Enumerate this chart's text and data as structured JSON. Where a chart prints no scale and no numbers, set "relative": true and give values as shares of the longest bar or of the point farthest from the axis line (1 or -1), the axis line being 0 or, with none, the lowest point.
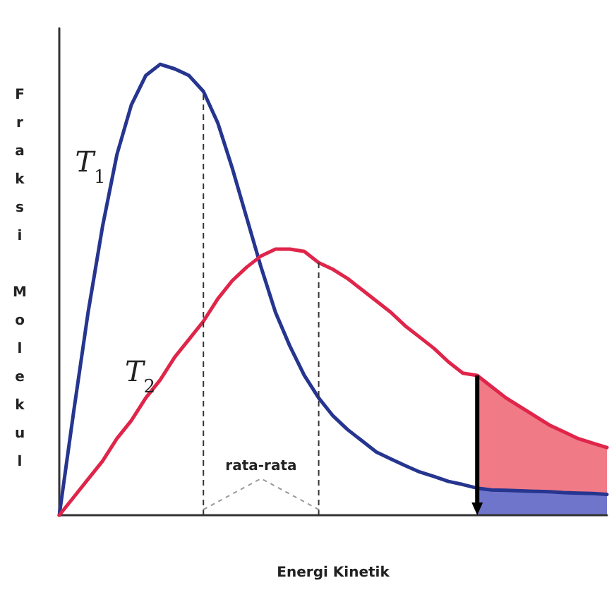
{
  "chart_data": {
    "type": "line",
    "relative": true,
    "xlabel": "Energi Kinetik",
    "ylabel": "Fraksi Molekul",
    "grid": false,
    "legend": false,
    "marker": "none",
    "line_style": "solid",
    "categories": [
      null,
      null,
      null,
      null,
      null,
      null,
      null,
      null,
      null,
      null,
      null,
      null,
      null,
      null,
      null,
      null,
      null,
      null,
      null,
      null,
      null,
      null,
      null,
      null,
      null,
      null,
      null,
      null,
      null,
      null,
      null,
      null,
      null,
      null,
      null,
      null,
      null,
      null,
      null
    ],
    "series": [
      {
        "name": "T$_{1}$",
        "color": "#26358f",
        "values": [
          0,
          0.23,
          0.45,
          0.64,
          0.8,
          0.91,
          0.975,
          1,
          0.99,
          0.975,
          0.94,
          0.87,
          0.77,
          0.66,
          0.55,
          0.45,
          0.375,
          0.31,
          0.26,
          0.22,
          0.19,
          0.165,
          0.14,
          0.125,
          0.11,
          0.096,
          0.086,
          0.075,
          0.068,
          0.06,
          0.056,
          0.055,
          0.054,
          0.053,
          0.052,
          0.05,
          0.049,
          0.048,
          0.046
        ]
      },
      {
        "name": "T$_{2}$",
        "color": "#e0254a",
        "values": [
          0,
          0.04,
          0.08,
          0.12,
          0.17,
          0.21,
          0.26,
          0.3,
          0.35,
          0.39,
          0.43,
          0.48,
          0.52,
          0.55,
          0.575,
          0.59,
          0.59,
          0.585,
          0.56,
          0.545,
          0.525,
          0.5,
          0.475,
          0.45,
          0.42,
          0.395,
          0.37,
          0.34,
          0.315,
          0.31,
          0.285,
          0.26,
          0.24,
          0.22,
          0.2,
          0.185,
          0.17,
          0.16,
          0.15
        ]
      }
    ],
    "annotations": [
      "rata-rata"
    ]
  }
}
